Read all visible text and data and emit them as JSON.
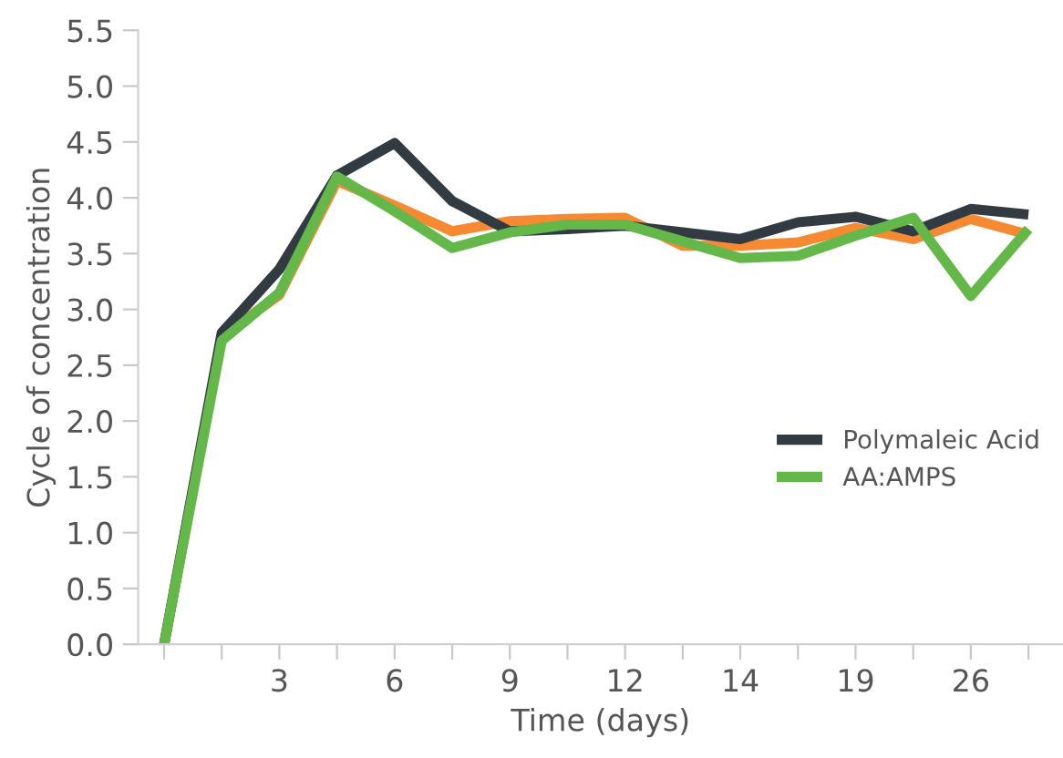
{
  "chart_data": {
    "type": "line",
    "xlabel": "Time (days)",
    "ylabel": "Cycle of concentration",
    "categories": [
      null,
      null,
      "3",
      null,
      "6",
      null,
      "9",
      null,
      "12",
      null,
      "14",
      null,
      "19",
      null,
      "26",
      null
    ],
    "series": [
      {
        "color": "#f58a33",
        "values": [
          0,
          2.76,
          3.13,
          4.15,
          3.93,
          3.7,
          3.79,
          3.81,
          3.82,
          3.57,
          3.57,
          3.6,
          3.73,
          3.63,
          3.81,
          3.67
        ]
      },
      {
        "name": "Polymaleic Acid",
        "color": "#333b42",
        "values": [
          0,
          2.79,
          3.36,
          4.2,
          4.49,
          3.97,
          3.7,
          3.72,
          3.75,
          3.69,
          3.63,
          3.78,
          3.83,
          3.7,
          3.9,
          3.85
        ]
      },
      {
        "name": "AA:AMPS",
        "color": "#63b849",
        "values": [
          0,
          2.72,
          3.15,
          4.19,
          3.88,
          3.55,
          3.69,
          3.76,
          3.76,
          3.61,
          3.46,
          3.48,
          3.66,
          3.82,
          3.12,
          3.72
        ]
      }
    ],
    "ylim": [
      0,
      5.5
    ],
    "yticks": [
      {
        "value": 0,
        "label": "0.0"
      },
      {
        "value": 0.5,
        "label": "0.5"
      },
      {
        "value": 1,
        "label": "1.0"
      },
      {
        "value": 1.5,
        "label": "1.5"
      },
      {
        "value": 2,
        "label": "2.0"
      },
      {
        "value": 2.5,
        "label": "2.5"
      },
      {
        "value": 3,
        "label": "3.0"
      },
      {
        "value": 3.5,
        "label": "3.5"
      },
      {
        "value": 4,
        "label": "4.0"
      },
      {
        "value": 4.5,
        "label": "4.5"
      },
      {
        "value": 5,
        "label": "5.0"
      },
      {
        "value": 5.5,
        "label": "5.5"
      }
    ],
    "grid": false,
    "legend": "right",
    "marker": "none",
    "line_style": "solid"
  }
}
